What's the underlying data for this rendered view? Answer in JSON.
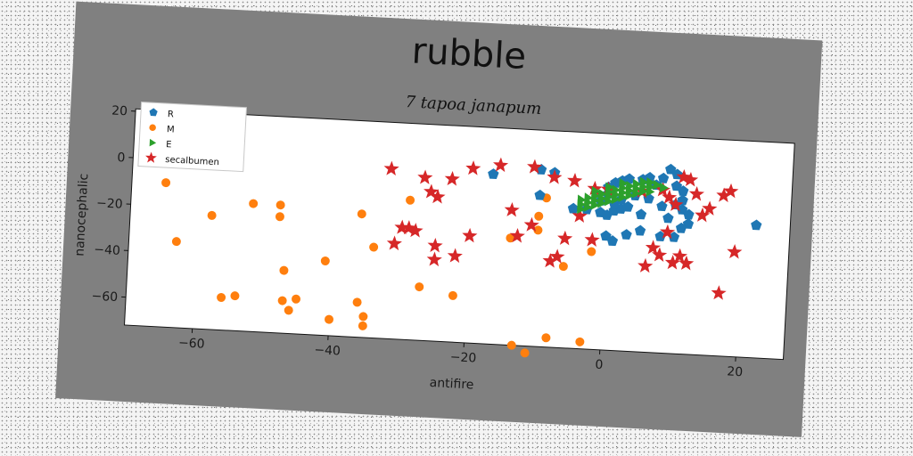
{
  "chart_data": {
    "type": "scatter",
    "title": "rubble",
    "subtitle": "7 tapoa janapum",
    "xlabel": "antifire",
    "ylabel": "nanocephalic",
    "xlim": [
      -70,
      27
    ],
    "ylim": [
      -72,
      21
    ],
    "xticks": [
      -60,
      -40,
      -20,
      0,
      20
    ],
    "yticks": [
      20,
      0,
      -20,
      -40,
      -60
    ],
    "grid": false,
    "legend_position": "top-left",
    "colors": {
      "R": "#1f77b4",
      "M": "#ff7f0e",
      "E": "#2ca02c",
      "secalbumen": "#d62728",
      "frame": "#808080"
    },
    "series": [
      {
        "name": "R",
        "marker": "pentagon",
        "points": [
          [
            -17,
            1
          ],
          [
            -10,
            4
          ],
          [
            -8,
            3
          ],
          [
            -10,
            -7
          ],
          [
            -5,
            -12
          ],
          [
            -3,
            -12
          ],
          [
            -1,
            -13
          ],
          [
            0,
            -14
          ],
          [
            1,
            -12
          ],
          [
            2,
            -11
          ],
          [
            3,
            -10
          ],
          [
            1,
            -9
          ],
          [
            0,
            -5
          ],
          [
            1,
            0
          ],
          [
            2,
            1
          ],
          [
            3,
            2
          ],
          [
            5,
            2
          ],
          [
            6,
            3
          ],
          [
            7,
            0
          ],
          [
            8,
            3
          ],
          [
            9,
            7
          ],
          [
            10,
            5
          ],
          [
            10,
            0
          ],
          [
            11,
            -2
          ],
          [
            10,
            -8
          ],
          [
            11,
            -10
          ],
          [
            12,
            -12
          ],
          [
            12,
            -16
          ],
          [
            11,
            -18
          ],
          [
            10,
            -22
          ],
          [
            8,
            -22
          ],
          [
            5,
            -20
          ],
          [
            3,
            -22
          ],
          [
            1,
            -25
          ],
          [
            0,
            -23
          ],
          [
            9,
            -14
          ],
          [
            6,
            -6
          ],
          [
            4,
            -5
          ],
          [
            2,
            -7
          ],
          [
            -1,
            -8
          ],
          [
            22,
            -15
          ],
          [
            11,
            -6
          ],
          [
            8,
            -9
          ],
          [
            0,
            -2
          ],
          [
            5,
            -13
          ]
        ]
      },
      {
        "name": "M",
        "marker": "circle",
        "points": [
          [
            -65,
            -10
          ],
          [
            -63,
            -35
          ],
          [
            -58,
            -23
          ],
          [
            -56,
            -58
          ],
          [
            -54,
            -57
          ],
          [
            -52,
            -17
          ],
          [
            -48,
            -17
          ],
          [
            -48,
            -22
          ],
          [
            -47,
            -45
          ],
          [
            -47,
            -58
          ],
          [
            -46,
            -62
          ],
          [
            -45,
            -57
          ],
          [
            -41,
            -40
          ],
          [
            -40,
            -65
          ],
          [
            -36,
            -57
          ],
          [
            -35,
            -63
          ],
          [
            -35,
            -67
          ],
          [
            -36,
            -19
          ],
          [
            -34,
            -33
          ],
          [
            -29,
            -12
          ],
          [
            -27,
            -49
          ],
          [
            -22,
            -52
          ],
          [
            -14,
            -26
          ],
          [
            -13,
            -72
          ],
          [
            -11,
            -75
          ],
          [
            -10,
            -16
          ],
          [
            -10,
            -22
          ],
          [
            -9,
            -8
          ],
          [
            -8,
            -68
          ],
          [
            -6,
            -37
          ],
          [
            -3,
            -69
          ],
          [
            -2,
            -30
          ]
        ]
      },
      {
        "name": "E",
        "marker": "triangle-right",
        "points": [
          [
            -4,
            -8
          ],
          [
            -3,
            -7
          ],
          [
            -2,
            -6
          ],
          [
            -1,
            -5
          ],
          [
            0,
            -4
          ],
          [
            1,
            -3
          ],
          [
            2,
            -2
          ],
          [
            3,
            -1
          ],
          [
            4,
            0
          ],
          [
            5,
            1
          ],
          [
            6,
            1
          ],
          [
            7,
            0
          ],
          [
            -4,
            -10
          ],
          [
            -3,
            -9
          ],
          [
            -2,
            -8
          ],
          [
            -1,
            -7
          ],
          [
            0,
            -6
          ],
          [
            1,
            -5
          ],
          [
            2,
            -4
          ],
          [
            3,
            -3
          ],
          [
            4,
            -2
          ],
          [
            5,
            -1
          ],
          [
            6,
            -1
          ],
          [
            -4,
            -12
          ],
          [
            -3,
            -11
          ],
          [
            -2,
            -10
          ],
          [
            -1,
            -9
          ],
          [
            0,
            -8
          ],
          [
            1,
            -7
          ],
          [
            2,
            -6
          ],
          [
            3,
            -5
          ],
          [
            4,
            -4
          ],
          [
            5,
            -3
          ],
          [
            -2,
            -4
          ],
          [
            0,
            -2
          ],
          [
            2,
            0
          ],
          [
            6,
            -3
          ],
          [
            8,
            -1
          ]
        ]
      },
      {
        "name": "secalbumen",
        "marker": "star",
        "points": [
          [
            -32,
            1
          ],
          [
            -27,
            -2
          ],
          [
            -26,
            -8
          ],
          [
            -25,
            -10
          ],
          [
            -23,
            -2
          ],
          [
            -20,
            3
          ],
          [
            -16,
            5
          ],
          [
            -11,
            5
          ],
          [
            -8,
            1
          ],
          [
            -5,
            0
          ],
          [
            -4,
            -15
          ],
          [
            -2,
            -3
          ],
          [
            0,
            -3
          ],
          [
            5,
            -3
          ],
          [
            8,
            -2
          ],
          [
            9,
            -5
          ],
          [
            10,
            -8
          ],
          [
            11,
            4
          ],
          [
            12,
            3
          ],
          [
            13,
            -3
          ],
          [
            15,
            -9
          ],
          [
            17,
            -3
          ],
          [
            18,
            -1
          ],
          [
            14,
            -12
          ],
          [
            -14,
            -14
          ],
          [
            -13,
            -25
          ],
          [
            -11,
            -20
          ],
          [
            -7,
            -33
          ],
          [
            -6,
            -25
          ],
          [
            -2,
            -25
          ],
          [
            7,
            -27
          ],
          [
            8,
            -30
          ],
          [
            9,
            -20
          ],
          [
            11,
            -30
          ],
          [
            12,
            -33
          ],
          [
            10,
            -33
          ],
          [
            6,
            -35
          ],
          [
            17,
            -45
          ],
          [
            19,
            -27
          ],
          [
            -25,
            -37
          ],
          [
            -25,
            -31
          ],
          [
            -22,
            -35
          ],
          [
            -20,
            -26
          ],
          [
            -31,
            -31
          ],
          [
            -30,
            -24
          ],
          [
            -29,
            -24
          ],
          [
            -28,
            -25
          ],
          [
            -8,
            -35
          ]
        ]
      }
    ]
  }
}
